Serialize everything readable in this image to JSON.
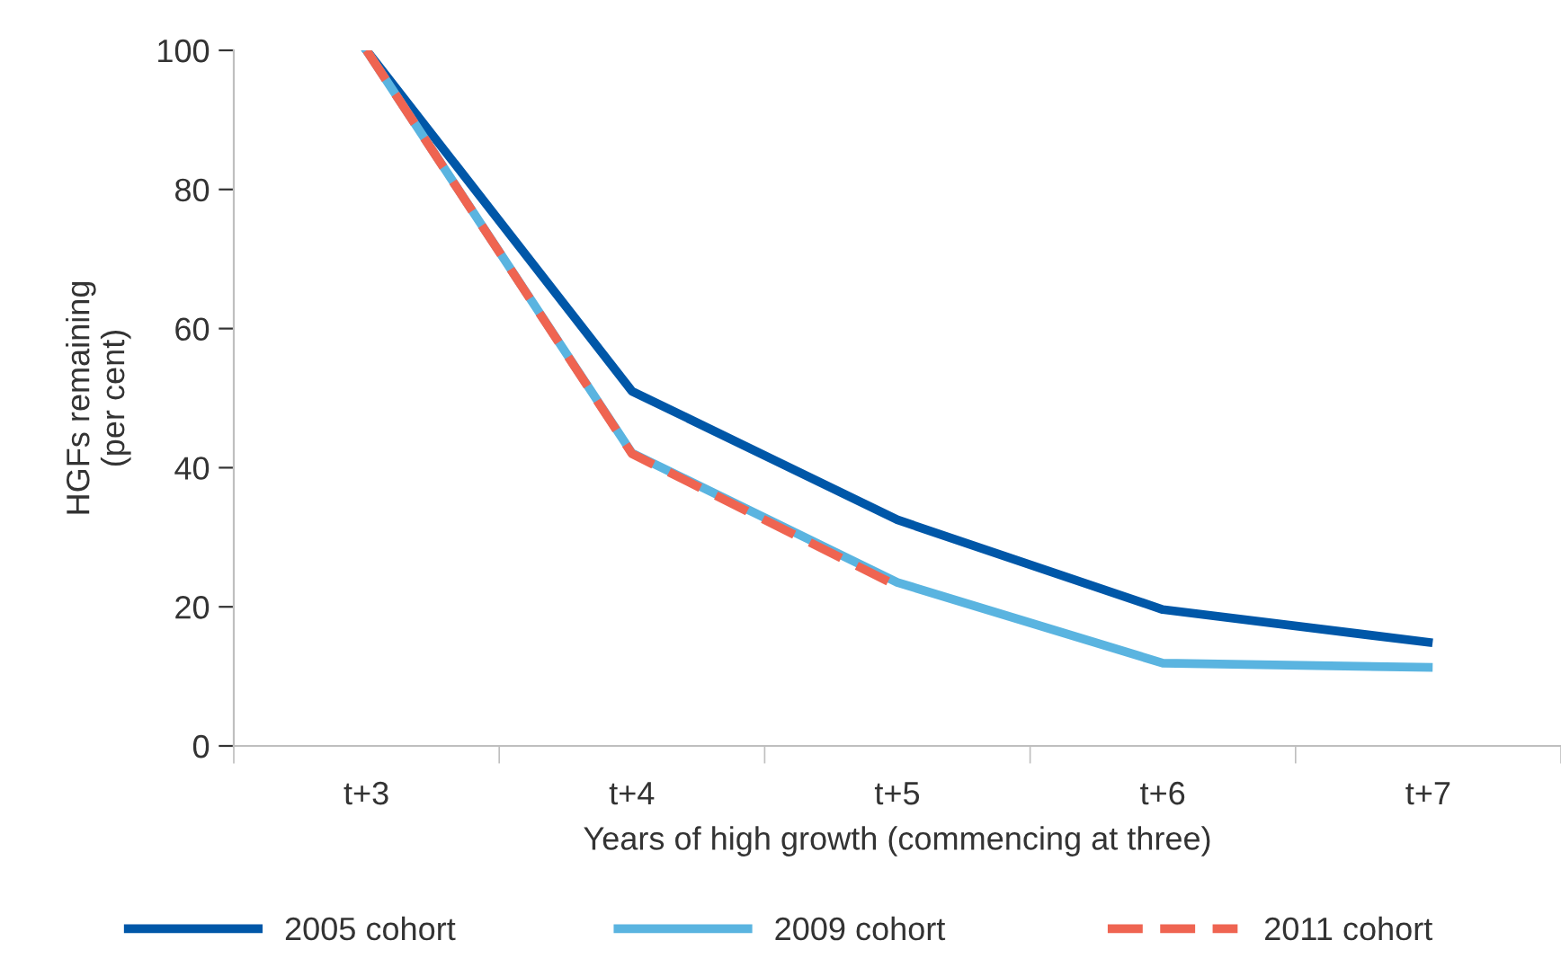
{
  "chart_data": {
    "type": "line",
    "xlabel": "Years of high growth (commencing at three)",
    "ylabel": "HGFs remaining\n(per cent)",
    "categories": [
      "t+3",
      "t+4",
      "t+5",
      "t+6",
      "t+7"
    ],
    "series": [
      {
        "name": "2005 cohort",
        "color": "#0057a8",
        "values": [
          100,
          51,
          32.5,
          19.6,
          14.9
        ]
      },
      {
        "name": "2009 cohort",
        "color": "#5ab4e0",
        "values": [
          100,
          42.1,
          23.5,
          11.9,
          11.3
        ]
      },
      {
        "name": "2011 cohort",
        "color": "#ef6451",
        "line_style": "dashed",
        "values": [
          100,
          42,
          23,
          null,
          null
        ]
      }
    ],
    "ylim": [
      0,
      100
    ],
    "yticks": [
      0,
      20,
      40,
      60,
      80,
      100
    ],
    "grid": false,
    "legend": "bottom",
    "marker": "none"
  }
}
